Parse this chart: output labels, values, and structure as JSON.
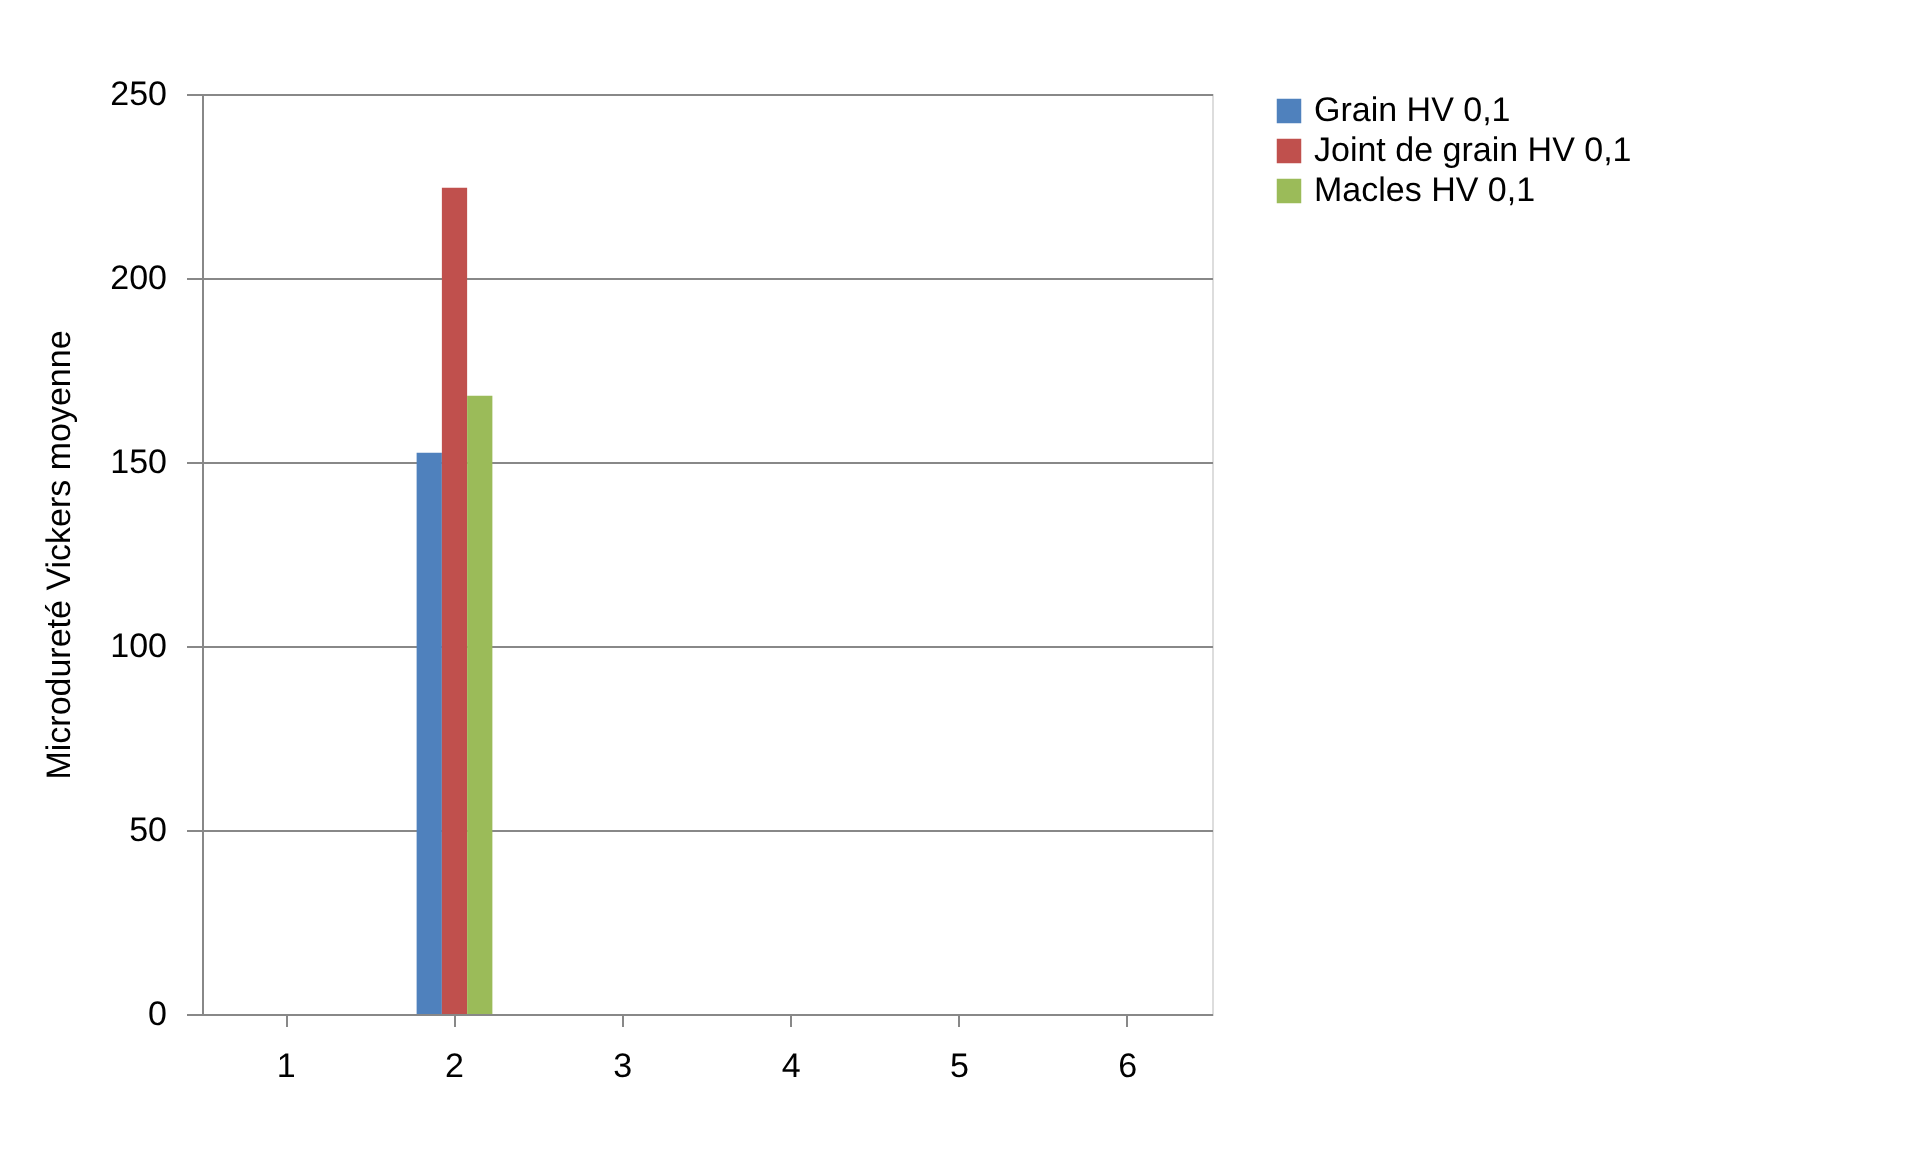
{
  "chart_data": {
    "type": "bar",
    "ylabel": "Microdureté Vickers moyenne",
    "categories": [
      "1",
      "2",
      "3",
      "4",
      "5",
      "6"
    ],
    "series": [
      {
        "name": "Grain HV 0,1",
        "color": "#4f81bd",
        "values": [
          null,
          152.5,
          null,
          null,
          null,
          null
        ]
      },
      {
        "name": "Joint de grain HV 0,1",
        "color": "#c0504d",
        "values": [
          null,
          224.5,
          null,
          null,
          null,
          null
        ]
      },
      {
        "name": "Macles HV 0,1",
        "color": "#9bbb59",
        "values": [
          null,
          168,
          null,
          null,
          null,
          null
        ]
      }
    ],
    "ylim": [
      0,
      250
    ],
    "yticks": [
      0,
      50,
      100,
      150,
      200,
      250
    ],
    "grid": "y",
    "legend": "right"
  }
}
